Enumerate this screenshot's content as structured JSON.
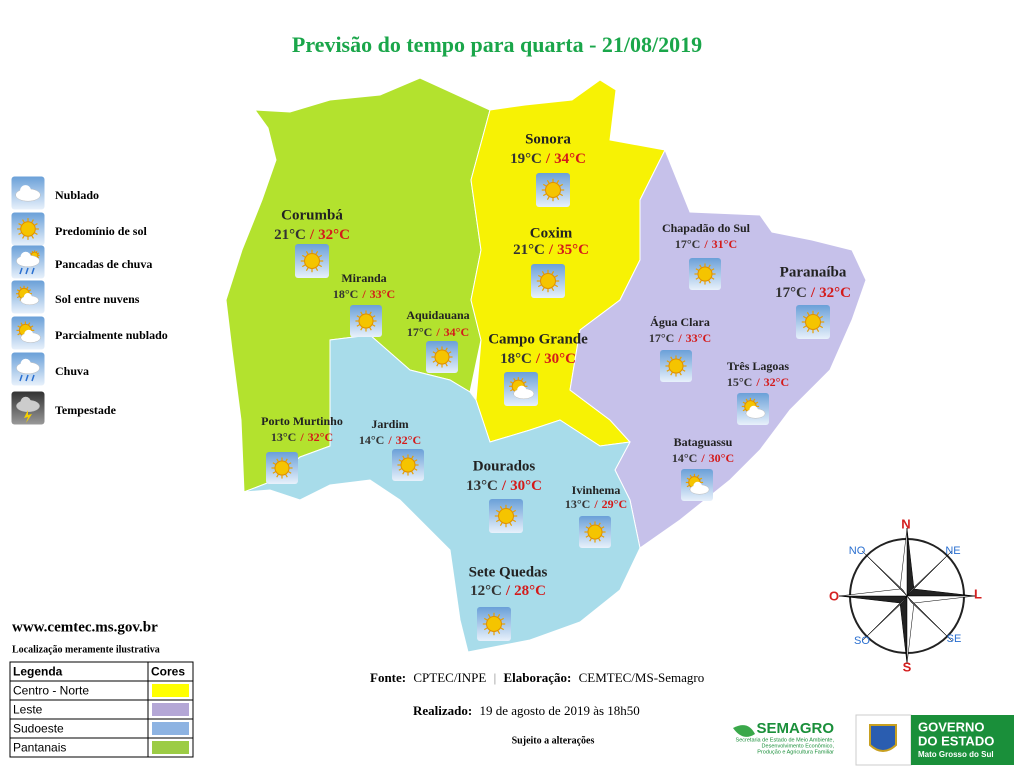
{
  "title": "Previsão do tempo para quarta - 21/08/2019",
  "weather_legend": [
    "Nublado",
    "Predomínio de sol",
    "Pancadas de chuva",
    "Sol entre nuvens",
    "Parcialmente nublado",
    "Chuva",
    "Tempestade"
  ],
  "temp_separator": "/",
  "cities": [
    {
      "name": "Sonora",
      "min": "19°C",
      "max": "34°C"
    },
    {
      "name": "Coxim",
      "min": "21°C",
      "max": "35°C"
    },
    {
      "name": "Campo Grande",
      "min": "18°C",
      "max": "30°C"
    },
    {
      "name": "Corumbá",
      "min": "21°C",
      "max": "32°C"
    },
    {
      "name": "Miranda",
      "min": "18°C",
      "max": "33°C"
    },
    {
      "name": "Aquidauana",
      "min": "17°C",
      "max": "34°C"
    },
    {
      "name": "Porto Murtinho",
      "min": "13°C",
      "max": "32°C"
    },
    {
      "name": "Jardim",
      "min": "14°C",
      "max": "32°C"
    },
    {
      "name": "Dourados",
      "min": "13°C",
      "max": "30°C"
    },
    {
      "name": "Ivinhema",
      "min": "13°C",
      "max": "29°C"
    },
    {
      "name": "Sete Quedas",
      "min": "12°C",
      "max": "28°C"
    },
    {
      "name": "Chapadão do Sul",
      "min": "17°C",
      "max": "31°C"
    },
    {
      "name": "Paranaíba",
      "min": "17°C",
      "max": "32°C"
    },
    {
      "name": "Água Clara",
      "min": "17°C",
      "max": "33°C"
    },
    {
      "name": "Três Lagoas",
      "min": "15°C",
      "max": "32°C"
    },
    {
      "name": "Bataguassu",
      "min": "14°C",
      "max": "30°C"
    }
  ],
  "website": "www.cemtec.ms.gov.br",
  "note": "Localização meramente ilustrativa",
  "region_table": {
    "header": [
      "Legenda",
      "Cores"
    ],
    "rows": [
      {
        "name": "Centro - Norte",
        "color": "#ffff00"
      },
      {
        "name": "Leste",
        "color": "#b4a7d6"
      },
      {
        "name": "Sudoeste",
        "color": "#8db3e2"
      },
      {
        "name": "Pantanais",
        "color": "#9ccc45"
      }
    ]
  },
  "source": {
    "label": "Fonte:",
    "value": "CPTEC/INPE",
    "divider": "|",
    "label2": "Elaboração:",
    "value2": "CEMTEC/MS-Semagro"
  },
  "made": {
    "label": "Realizado:",
    "value": "19 de agosto de 2019 às 18h50"
  },
  "disclaimer": "Sujeito a alterações",
  "compass": {
    "n": "N",
    "ne": "NE",
    "e": "L",
    "se": "SE",
    "s": "S",
    "sw": "SO",
    "w": "O",
    "nw": "NO"
  },
  "logos": {
    "semagro": "SEMAGRO",
    "semagro_sub": [
      "Secretaria de Estado de Meio Ambiente,",
      "Desenvolvimento Econômico,",
      "Produção e Agricultura Familiar"
    ],
    "gov1": "GOVERNO",
    "gov2": "DO ESTADO",
    "gov3": "Mato Grosso do Sul"
  }
}
